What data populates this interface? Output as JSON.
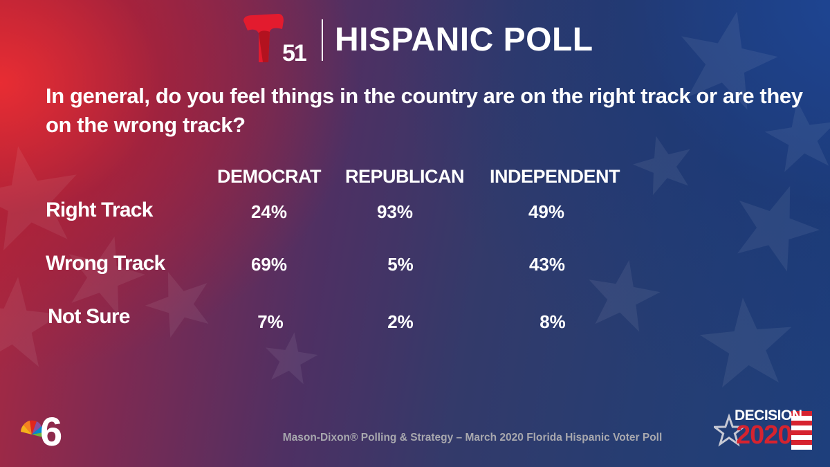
{
  "header": {
    "logo_number": "51",
    "title": "HISPANIC POLL"
  },
  "question": "In general, do you feel things in the country are on the right track or are they on the wrong track?",
  "columns": [
    "DEMOCRAT",
    "REPUBLICAN",
    "INDEPENDENT"
  ],
  "rows": [
    {
      "label": "Right Track",
      "values": [
        "24%",
        "93%",
        "49%"
      ]
    },
    {
      "label": "Wrong Track",
      "values": [
        "69%",
        "5%",
        "43%"
      ]
    },
    {
      "label": "Not Sure",
      "values": [
        "7%",
        "2%",
        "8%"
      ]
    }
  ],
  "footer": "Mason-Dixon® Polling & Strategy – March 2020 Florida Hispanic Voter Poll",
  "badge": {
    "line1": "DECISION",
    "line2": "2020"
  },
  "colors": {
    "red_accent": "#e31b2e",
    "blue_accent": "#1e3f7c",
    "footer_gray": "#a8a8ae"
  },
  "icons": {
    "station_logo": "telemundo-t-logo",
    "network_logo": "nbc-peacock-6-logo",
    "badge_star": "star-icon"
  }
}
